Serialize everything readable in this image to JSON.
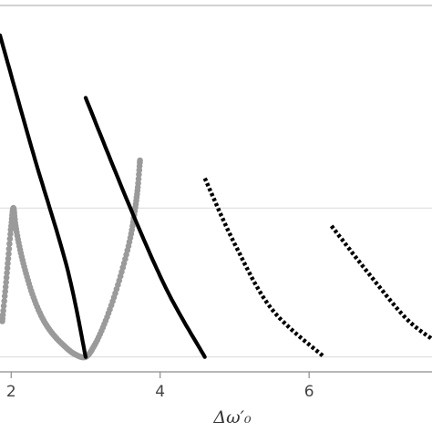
{
  "chart_data": {
    "type": "scatter",
    "xlabel": "Δω′₀",
    "x_ticks": [
      {
        "value": 2,
        "label": "2"
      },
      {
        "value": 4,
        "label": "4"
      },
      {
        "value": 6,
        "label": "6"
      }
    ],
    "xlim": [
      1.85,
      7.65
    ],
    "ylim": [
      -0.05,
      1.18
    ],
    "grid": "horizontal",
    "h_grid_values": [
      0.0,
      0.5
    ],
    "frame_top": true,
    "colors": {
      "solid": "#000000",
      "dotted_black": "#000000",
      "gray_points": "#9a9a9a",
      "grid": "#d9d9d9",
      "axis": "#8c8c8c"
    },
    "series": [
      {
        "style": "solid",
        "color": "#000000",
        "points": [
          [
            1.85,
            1.08
          ],
          [
            2.3,
            0.68
          ],
          [
            2.75,
            0.3
          ],
          [
            3.0,
            0.0
          ]
        ]
      },
      {
        "style": "solid",
        "color": "#000000",
        "points": [
          [
            3.0,
            0.87
          ],
          [
            3.6,
            0.5
          ],
          [
            4.1,
            0.22
          ],
          [
            4.6,
            0.0
          ]
        ]
      },
      {
        "style": "dotted",
        "color": "#000000",
        "points": [
          [
            4.6,
            0.6
          ],
          [
            5.0,
            0.38
          ],
          [
            5.5,
            0.16
          ],
          [
            6.2,
            0.0
          ]
        ]
      },
      {
        "style": "dotted",
        "color": "#000000",
        "points": [
          [
            6.3,
            0.44
          ],
          [
            6.8,
            0.28
          ],
          [
            7.3,
            0.13
          ],
          [
            7.65,
            0.06
          ]
        ]
      },
      {
        "style": "circles",
        "color": "#9a9a9a",
        "points": [
          [
            1.88,
            0.12
          ],
          [
            1.92,
            0.22
          ],
          [
            1.96,
            0.33
          ],
          [
            2.0,
            0.44
          ],
          [
            2.03,
            0.5
          ],
          [
            2.06,
            0.44
          ],
          [
            2.12,
            0.36
          ],
          [
            2.2,
            0.28
          ],
          [
            2.3,
            0.2
          ],
          [
            2.42,
            0.13
          ],
          [
            2.55,
            0.08
          ],
          [
            2.7,
            0.04
          ],
          [
            2.85,
            0.01
          ],
          [
            3.0,
            0.0
          ],
          [
            3.12,
            0.04
          ],
          [
            3.25,
            0.11
          ],
          [
            3.38,
            0.2
          ],
          [
            3.5,
            0.3
          ],
          [
            3.6,
            0.4
          ],
          [
            3.66,
            0.49
          ],
          [
            3.7,
            0.57
          ],
          [
            3.73,
            0.66
          ]
        ]
      }
    ]
  }
}
